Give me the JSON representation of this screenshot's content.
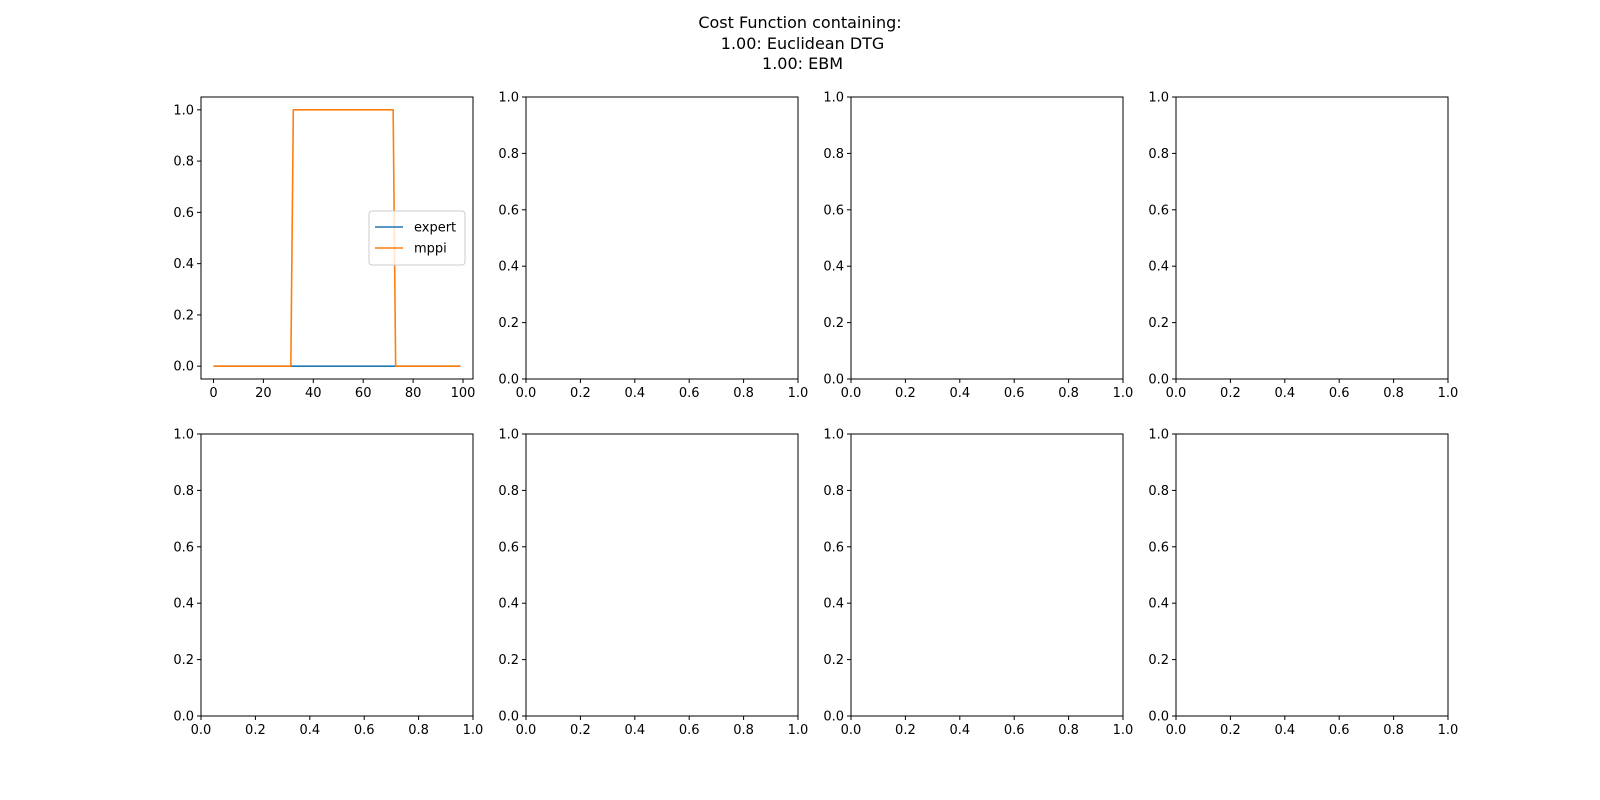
{
  "figure": {
    "title_lines": [
      "Cost Function containing:",
      " 1.00: Euclidean DTG",
      " 1.00: EBM"
    ]
  },
  "colors": {
    "expert": "#1f77b4",
    "mppi": "#ff7f0e"
  },
  "chart_data": [
    {
      "type": "line",
      "legend_position": "center-right",
      "xlim": [
        -5,
        104
      ],
      "ylim": [
        -0.05,
        1.05
      ],
      "xticks": [
        0,
        20,
        40,
        60,
        80,
        100
      ],
      "yticks": [
        0.0,
        0.2,
        0.4,
        0.6,
        0.8,
        1.0
      ],
      "xtick_labels": [
        "0",
        "20",
        "40",
        "60",
        "80",
        "100"
      ],
      "ytick_labels": [
        "0.0",
        "0.2",
        "0.4",
        "0.6",
        "0.8",
        "1.0"
      ],
      "series": [
        {
          "name": "expert",
          "color": "#1f77b4",
          "x": [
            0,
            99
          ],
          "y": [
            0,
            0
          ]
        },
        {
          "name": "mppi",
          "color": "#ff7f0e",
          "x": [
            0,
            31,
            32,
            72,
            73,
            99
          ],
          "y": [
            0,
            0,
            1,
            1,
            0,
            0
          ]
        }
      ]
    },
    {
      "type": "line",
      "xlim": [
        0,
        1
      ],
      "ylim": [
        0,
        1
      ],
      "series": [],
      "xticks": [
        0,
        0.2,
        0.4,
        0.6,
        0.8,
        1.0
      ],
      "yticks": [
        0,
        0.2,
        0.4,
        0.6,
        0.8,
        1.0
      ],
      "xtick_labels": [
        "0.0",
        "0.2",
        "0.4",
        "0.6",
        "0.8",
        "1.0"
      ],
      "ytick_labels": [
        "0.0",
        "0.2",
        "0.4",
        "0.6",
        "0.8",
        "1.0"
      ]
    },
    {
      "type": "line",
      "xlim": [
        0,
        1
      ],
      "ylim": [
        0,
        1
      ],
      "series": [],
      "xticks": [
        0,
        0.2,
        0.4,
        0.6,
        0.8,
        1.0
      ],
      "yticks": [
        0,
        0.2,
        0.4,
        0.6,
        0.8,
        1.0
      ],
      "xtick_labels": [
        "0.0",
        "0.2",
        "0.4",
        "0.6",
        "0.8",
        "1.0"
      ],
      "ytick_labels": [
        "0.0",
        "0.2",
        "0.4",
        "0.6",
        "0.8",
        "1.0"
      ]
    },
    {
      "type": "line",
      "xlim": [
        0,
        1
      ],
      "ylim": [
        0,
        1
      ],
      "series": [],
      "xticks": [
        0,
        0.2,
        0.4,
        0.6,
        0.8,
        1.0
      ],
      "yticks": [
        0,
        0.2,
        0.4,
        0.6,
        0.8,
        1.0
      ],
      "xtick_labels": [
        "0.0",
        "0.2",
        "0.4",
        "0.6",
        "0.8",
        "1.0"
      ],
      "ytick_labels": [
        "0.0",
        "0.2",
        "0.4",
        "0.6",
        "0.8",
        "1.0"
      ]
    },
    {
      "type": "line",
      "xlim": [
        0,
        1
      ],
      "ylim": [
        0,
        1
      ],
      "series": [],
      "xticks": [
        0,
        0.2,
        0.4,
        0.6,
        0.8,
        1.0
      ],
      "yticks": [
        0,
        0.2,
        0.4,
        0.6,
        0.8,
        1.0
      ],
      "xtick_labels": [
        "0.0",
        "0.2",
        "0.4",
        "0.6",
        "0.8",
        "1.0"
      ],
      "ytick_labels": [
        "0.0",
        "0.2",
        "0.4",
        "0.6",
        "0.8",
        "1.0"
      ]
    },
    {
      "type": "line",
      "xlim": [
        0,
        1
      ],
      "ylim": [
        0,
        1
      ],
      "series": [],
      "xticks": [
        0,
        0.2,
        0.4,
        0.6,
        0.8,
        1.0
      ],
      "yticks": [
        0,
        0.2,
        0.4,
        0.6,
        0.8,
        1.0
      ],
      "xtick_labels": [
        "0.0",
        "0.2",
        "0.4",
        "0.6",
        "0.8",
        "1.0"
      ],
      "ytick_labels": [
        "0.0",
        "0.2",
        "0.4",
        "0.6",
        "0.8",
        "1.0"
      ]
    },
    {
      "type": "line",
      "xlim": [
        0,
        1
      ],
      "ylim": [
        0,
        1
      ],
      "series": [],
      "xticks": [
        0,
        0.2,
        0.4,
        0.6,
        0.8,
        1.0
      ],
      "yticks": [
        0,
        0.2,
        0.4,
        0.6,
        0.8,
        1.0
      ],
      "xtick_labels": [
        "0.0",
        "0.2",
        "0.4",
        "0.6",
        "0.8",
        "1.0"
      ],
      "ytick_labels": [
        "0.0",
        "0.2",
        "0.4",
        "0.6",
        "0.8",
        "1.0"
      ]
    },
    {
      "type": "line",
      "xlim": [
        0,
        1
      ],
      "ylim": [
        0,
        1
      ],
      "series": [],
      "xticks": [
        0,
        0.2,
        0.4,
        0.6,
        0.8,
        1.0
      ],
      "yticks": [
        0,
        0.2,
        0.4,
        0.6,
        0.8,
        1.0
      ],
      "xtick_labels": [
        "0.0",
        "0.2",
        "0.4",
        "0.6",
        "0.8",
        "1.0"
      ],
      "ytick_labels": [
        "0.0",
        "0.2",
        "0.4",
        "0.6",
        "0.8",
        "1.0"
      ]
    }
  ]
}
